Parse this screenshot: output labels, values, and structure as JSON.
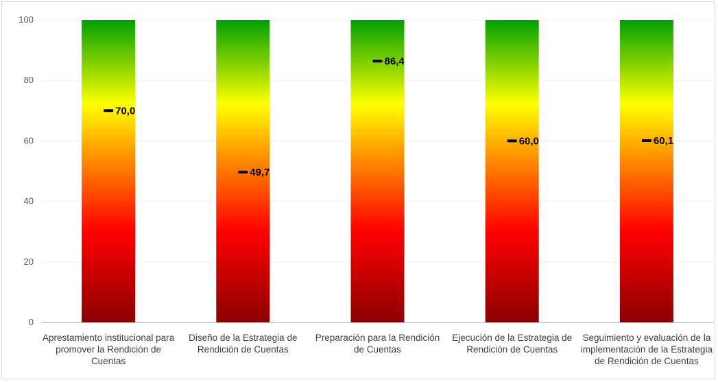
{
  "chart_data": {
    "type": "bar",
    "title": "",
    "xlabel": "",
    "ylabel": "",
    "ylim": [
      0,
      100
    ],
    "yticks": [
      0,
      20,
      40,
      60,
      80,
      100
    ],
    "grid": true,
    "legend": "none",
    "categories": [
      [
        "Aprestamiento institucional para",
        "promover la Rendición de",
        "Cuentas"
      ],
      [
        "Diseño de la Estrategia de",
        "Rendición de Cuentas"
      ],
      [
        "Preparación para la Rendición",
        "de Cuentas"
      ],
      [
        "Ejecución de la Estrategia de",
        "Rendición de Cuentas"
      ],
      [
        "Seguimiento y evaluación de la",
        "implementación de la Estrategia",
        "de Rendición de Cuentas"
      ]
    ],
    "bar_values": [
      100,
      100,
      100,
      100,
      100
    ],
    "marker_values": [
      70.0,
      49.7,
      86.4,
      60.0,
      60.1
    ],
    "marker_labels": [
      "70,0",
      "49,7",
      "86,4",
      "60,0",
      "60,1"
    ],
    "gradient_colors": [
      "#8b0000",
      "#ff0000",
      "#ffa500",
      "#ffff00",
      "#00a000"
    ],
    "marker_color": "#000000"
  }
}
